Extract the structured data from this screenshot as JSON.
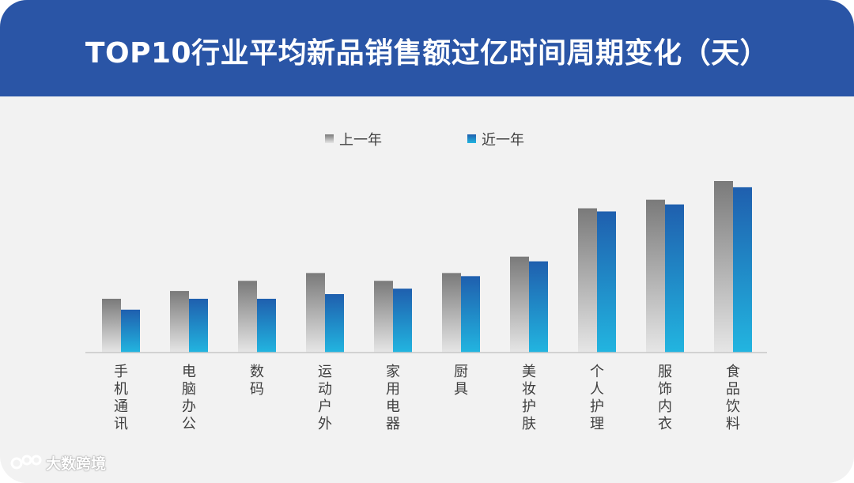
{
  "header": {
    "title": "TOP10行业平均新品销售额过亿时间周期变化（天）"
  },
  "watermark": {
    "text": "大数跨境"
  },
  "colors": {
    "banner": "#2a55a6",
    "background": "#f2f2f2",
    "prev_year_top": "#7a7a7a",
    "prev_year_bottom": "#e6e6e6",
    "recent_year_top": "#1f5fae",
    "recent_year_bottom": "#22b5e0"
  },
  "chart_data": {
    "type": "bar",
    "title": "TOP10行业平均新品销售额过亿时间周期变化（天）",
    "xlabel": "",
    "ylabel": "",
    "ylim": [
      0,
      220
    ],
    "grid": false,
    "legend_position": "top",
    "categories": [
      "手机通讯",
      "电脑办公",
      "数码",
      "运动户外",
      "家用电器",
      "厨具",
      "美妆护肤",
      "个人护理",
      "服饰内衣",
      "食品饮料"
    ],
    "series": [
      {
        "name": "上一年",
        "values": [
          69,
          79,
          92,
          102,
          92,
          102,
          123,
          185,
          196,
          220
        ]
      },
      {
        "name": "近一年",
        "values": [
          55,
          69,
          69,
          75,
          82,
          98,
          117,
          181,
          190,
          212
        ]
      }
    ]
  }
}
